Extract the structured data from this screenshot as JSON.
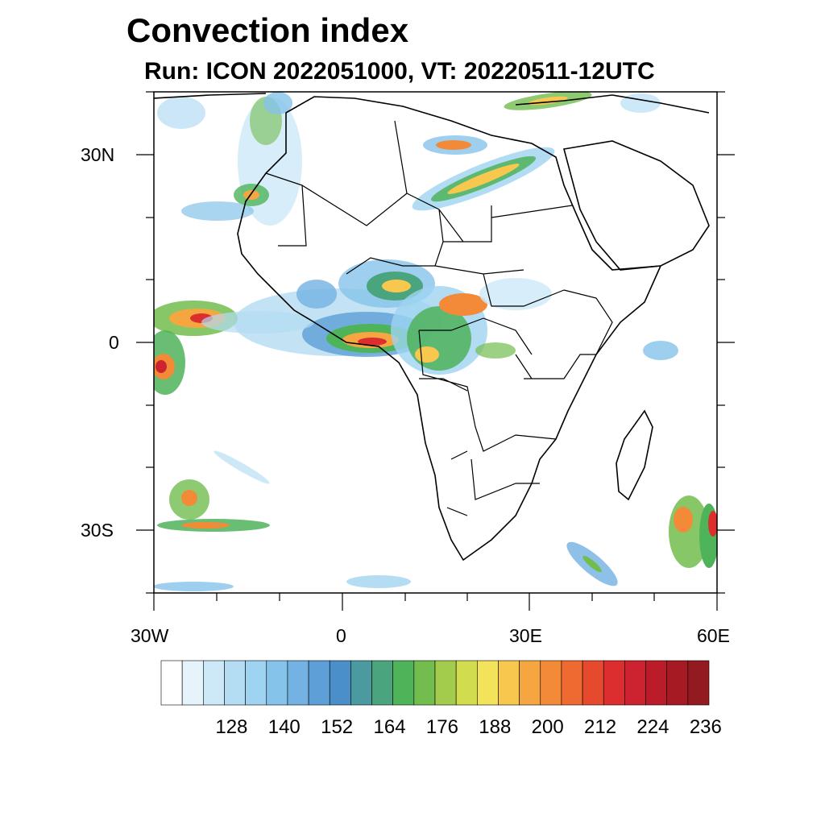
{
  "title": "Convection index",
  "subtitle": "Run: ICON 2022051000,  VT: 20220511-12UTC",
  "axes": {
    "lat_labels": [
      "30N",
      "0",
      "30S"
    ],
    "lon_labels": [
      "30W",
      "0",
      "30E",
      "60E"
    ]
  },
  "colorbar": {
    "colors": [
      "#ffffff",
      "#e6f3fb",
      "#cde8f7",
      "#b4dcf3",
      "#9ed3f1",
      "#86c3ea",
      "#73b2e2",
      "#5d9fd6",
      "#4a8fc7",
      "#4a9aa0",
      "#4aa57e",
      "#4fb35a",
      "#72bd4e",
      "#a4cc4c",
      "#d1dc4e",
      "#f2e35a",
      "#f8c84e",
      "#f6a640",
      "#f38a38",
      "#ef6a31",
      "#e64a2e",
      "#dc2e2e",
      "#cd2230",
      "#bb1c2a",
      "#a61a24",
      "#931a20"
    ],
    "labels": [
      "128",
      "140",
      "152",
      "164",
      "176",
      "188",
      "200",
      "212",
      "224",
      "236"
    ]
  },
  "convection_areas": [
    {
      "id": "gulf-guinea",
      "level": "high"
    },
    {
      "id": "central-africa",
      "level": "high"
    },
    {
      "id": "atlantic-equatorial",
      "level": "high"
    },
    {
      "id": "north-africa",
      "level": "medium"
    },
    {
      "id": "south-atlantic",
      "level": "medium"
    },
    {
      "id": "madagascar-east",
      "level": "medium"
    },
    {
      "id": "mediterranean",
      "level": "low"
    }
  ]
}
